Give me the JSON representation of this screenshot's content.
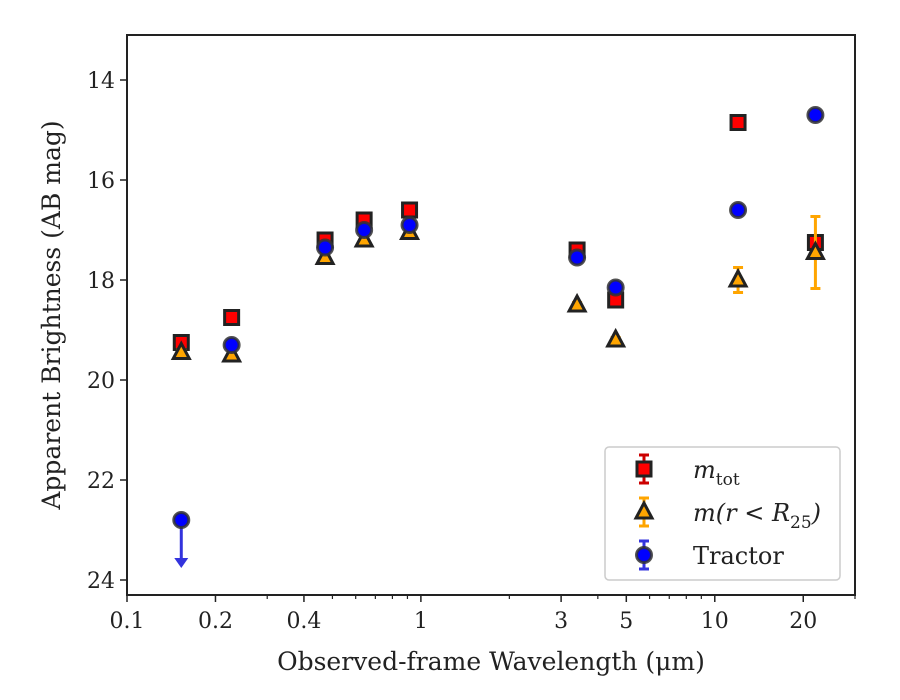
{
  "chart_data": {
    "type": "scatter",
    "title": "",
    "xlabel": "Observed-frame Wavelength (μm)",
    "ylabel": "Apparent Brightness (AB mag)",
    "xscale": "log",
    "xlim": [
      0.1,
      30
    ],
    "ylim": [
      24.3,
      13.1
    ],
    "y_inverted": true,
    "grid": false,
    "legend_position": "lower-right",
    "x_ticks": [
      {
        "value": 0.1,
        "label": "0.1"
      },
      {
        "value": 0.2,
        "label": "0.2"
      },
      {
        "value": 0.4,
        "label": "0.4"
      },
      {
        "value": 1,
        "label": "1"
      },
      {
        "value": 3,
        "label": "3"
      },
      {
        "value": 5,
        "label": "5"
      },
      {
        "value": 10,
        "label": "10"
      },
      {
        "value": 20,
        "label": "20"
      }
    ],
    "x_minor_ticks": [
      0.3,
      0.5,
      0.6,
      0.7,
      0.8,
      0.9,
      2,
      4,
      6,
      7,
      8,
      9,
      30
    ],
    "y_ticks": [
      {
        "value": 14,
        "label": "14"
      },
      {
        "value": 16,
        "label": "16"
      },
      {
        "value": 18,
        "label": "18"
      },
      {
        "value": 20,
        "label": "20"
      },
      {
        "value": 22,
        "label": "22"
      },
      {
        "value": 24,
        "label": "24"
      }
    ],
    "series": [
      {
        "name": "m_tot",
        "marker": "square",
        "color": "#ff0000",
        "edge_color": "#222222",
        "err_color": "#cc0000",
        "points": [
          {
            "x": 0.153,
            "y": 19.25,
            "err": 0.05
          },
          {
            "x": 0.227,
            "y": 18.75,
            "err": 0.05
          },
          {
            "x": 0.472,
            "y": 17.2,
            "err": 0.05
          },
          {
            "x": 0.641,
            "y": 16.8,
            "err": 0.05
          },
          {
            "x": 0.915,
            "y": 16.6,
            "err": 0.05
          },
          {
            "x": 3.4,
            "y": 17.4,
            "err": 0.05
          },
          {
            "x": 4.6,
            "y": 18.4,
            "err": 0.05
          },
          {
            "x": 12.0,
            "y": 14.85,
            "err": 0.05
          },
          {
            "x": 22.0,
            "y": 17.25,
            "err": 0.05
          }
        ]
      },
      {
        "name": "m(r<R_25)",
        "marker": "triangle",
        "color": "#ffa500",
        "edge_color": "#222222",
        "err_color": "#ffa500",
        "points": [
          {
            "x": 0.153,
            "y": 19.45,
            "err": 0.05
          },
          {
            "x": 0.227,
            "y": 19.5,
            "err": 0.05
          },
          {
            "x": 0.472,
            "y": 17.55,
            "err": 0.05
          },
          {
            "x": 0.641,
            "y": 17.2,
            "err": 0.05
          },
          {
            "x": 0.915,
            "y": 17.05,
            "err": 0.05
          },
          {
            "x": 3.4,
            "y": 18.5,
            "err": 0.05
          },
          {
            "x": 4.6,
            "y": 19.2,
            "err": 0.05
          },
          {
            "x": 12.0,
            "y": 18.0,
            "err": 0.25
          },
          {
            "x": 22.0,
            "y": 17.45,
            "err": 0.72
          }
        ]
      },
      {
        "name": "Tractor",
        "marker": "circle",
        "color": "#0000ff",
        "edge_color": "#333333",
        "err_color": "#3333dd",
        "points": [
          {
            "x": 0.153,
            "y": 22.8,
            "err": 0,
            "upper_limit": true
          },
          {
            "x": 0.227,
            "y": 19.3,
            "err": 0.05
          },
          {
            "x": 0.472,
            "y": 17.35,
            "err": 0.05
          },
          {
            "x": 0.641,
            "y": 17.0,
            "err": 0.05
          },
          {
            "x": 0.915,
            "y": 16.9,
            "err": 0.05
          },
          {
            "x": 3.4,
            "y": 17.55,
            "err": 0.05
          },
          {
            "x": 4.6,
            "y": 18.15,
            "err": 0.05
          },
          {
            "x": 12.0,
            "y": 16.6,
            "err": 0.05
          },
          {
            "x": 22.0,
            "y": 14.7,
            "err": 0.05
          }
        ]
      }
    ],
    "legend": [
      {
        "series": "m_tot",
        "main": "m",
        "sub": "tot",
        "tail": ""
      },
      {
        "series": "m(r<R_25)",
        "main": "m(r < R",
        "sub": "25",
        "tail": ")"
      },
      {
        "series": "Tractor",
        "main": "Tractor",
        "sub": "",
        "tail": ""
      }
    ]
  }
}
